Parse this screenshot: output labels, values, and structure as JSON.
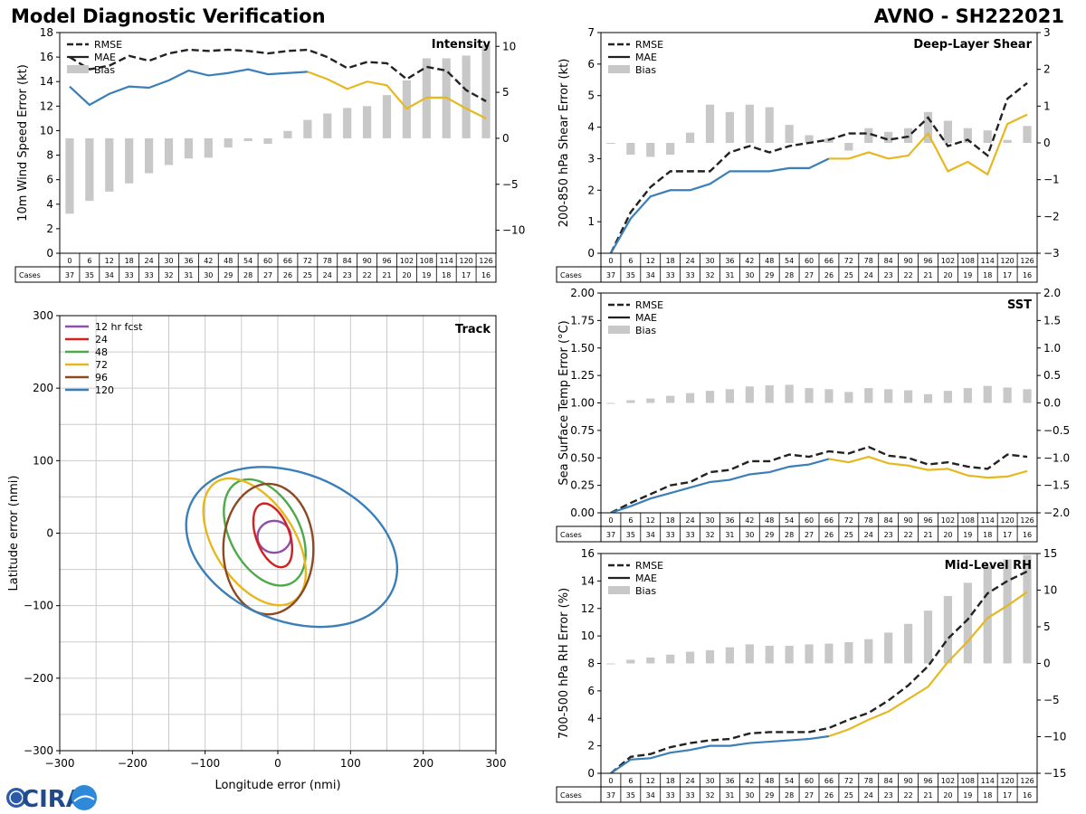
{
  "header": {
    "title_left": "Model Diagnostic Verification",
    "title_right": "AVNO - SH222021"
  },
  "logo": {
    "text": "CIRA",
    "icon": "cira-logo-icon"
  },
  "colors": {
    "rmse": "#222222",
    "mae_early": "#3a7fb9",
    "mae_late": "#e6b820",
    "bias": "#c8c8c8",
    "grid": "#cccccc"
  },
  "legend": {
    "rmse": "RMSE",
    "mae": "MAE",
    "bias": "Bias"
  },
  "cases_label": "Cases",
  "hours": [
    0,
    6,
    12,
    18,
    24,
    30,
    36,
    42,
    48,
    54,
    60,
    66,
    72,
    78,
    84,
    90,
    96,
    102,
    108,
    114,
    120,
    126
  ],
  "cases": [
    37,
    35,
    34,
    33,
    33,
    32,
    31,
    30,
    29,
    28,
    27,
    26,
    25,
    24,
    23,
    22,
    21,
    20,
    19,
    18,
    17,
    16
  ],
  "chart_data": [
    {
      "id": "intensity",
      "type": "line",
      "title": "Intensity",
      "xlabel": "",
      "ylabel": "10m Wind Speed Error (kt)",
      "ylim": [
        0,
        18
      ],
      "yticks": [
        0,
        2,
        4,
        6,
        8,
        10,
        12,
        14,
        16,
        18
      ],
      "y2lim": [
        -12.5,
        11.5
      ],
      "y2ticks": [
        10,
        5,
        0,
        -5,
        -10
      ],
      "y2ticklabels": [
        "10",
        "5",
        "0",
        "−5",
        "−10"
      ],
      "mae_color_switch_hour": 72,
      "series": [
        {
          "name": "RMSE",
          "values": [
            16.0,
            15.0,
            15.3,
            16.1,
            15.7,
            16.3,
            16.6,
            16.5,
            16.6,
            16.5,
            16.3,
            16.5,
            16.6,
            16.0,
            15.1,
            15.6,
            15.5,
            14.2,
            15.2,
            14.9,
            13.3,
            12.4
          ]
        },
        {
          "name": "MAE",
          "values": [
            13.6,
            12.1,
            13.0,
            13.6,
            13.5,
            14.1,
            14.9,
            14.5,
            14.7,
            15.0,
            14.6,
            14.7,
            14.8,
            14.2,
            13.4,
            14.0,
            13.7,
            11.8,
            12.7,
            12.7,
            11.8,
            11.0
          ]
        },
        {
          "name": "Bias",
          "axis": "right",
          "values": [
            -8.2,
            -6.8,
            -5.8,
            -4.9,
            -3.8,
            -2.9,
            -2.2,
            -2.1,
            -1.0,
            -0.3,
            -0.6,
            0.8,
            2.0,
            2.7,
            3.3,
            3.5,
            4.7,
            6.3,
            8.7,
            8.7,
            9.0,
            10.2
          ]
        }
      ]
    },
    {
      "id": "shear",
      "type": "line",
      "title": "Deep-Layer Shear",
      "xlabel": "",
      "ylabel": "200-850 hPa Shear Error (kt)",
      "ylim": [
        0,
        7
      ],
      "yticks": [
        0,
        1,
        2,
        3,
        4,
        5,
        6,
        7
      ],
      "y2lim": [
        -3,
        3
      ],
      "y2ticks": [
        3,
        2,
        1,
        0,
        -1,
        -2,
        -3
      ],
      "y2ticklabels": [
        "3",
        "2",
        "1",
        "0",
        "−1",
        "−2",
        "−3"
      ],
      "mae_color_switch_hour": 66,
      "series": [
        {
          "name": "RMSE",
          "values": [
            0.0,
            1.3,
            2.1,
            2.6,
            2.6,
            2.6,
            3.2,
            3.4,
            3.2,
            3.4,
            3.5,
            3.6,
            3.8,
            3.8,
            3.6,
            3.7,
            4.3,
            3.4,
            3.6,
            3.1,
            4.9,
            5.4
          ]
        },
        {
          "name": "MAE",
          "values": [
            0.0,
            1.1,
            1.8,
            2.0,
            2.0,
            2.2,
            2.6,
            2.6,
            2.6,
            2.7,
            2.7,
            3.0,
            3.0,
            3.2,
            3.0,
            3.1,
            3.8,
            2.6,
            2.9,
            2.5,
            4.1,
            4.4
          ]
        },
        {
          "name": "Bias",
          "axis": "right",
          "values": [
            0.0,
            -0.32,
            -0.38,
            -0.32,
            0.28,
            1.04,
            0.84,
            1.04,
            0.97,
            0.49,
            0.21,
            0.13,
            -0.21,
            0.4,
            0.3,
            0.4,
            0.84,
            0.6,
            0.4,
            0.34,
            0.08,
            0.46
          ]
        }
      ]
    },
    {
      "id": "sst",
      "type": "line",
      "title": "SST",
      "xlabel": "",
      "ylabel": "Sea Surface Temp Error (°C)",
      "ylim": [
        0,
        2
      ],
      "yticks": [
        0,
        0.25,
        0.5,
        0.75,
        1.0,
        1.25,
        1.5,
        1.75,
        2.0
      ],
      "yticklabels": [
        "0.00",
        "0.25",
        "0.50",
        "0.75",
        "1.00",
        "1.25",
        "1.50",
        "1.75",
        "2.00"
      ],
      "y2lim": [
        -2,
        2
      ],
      "y2ticks": [
        2.0,
        1.5,
        1.0,
        0.5,
        0.0,
        -0.5,
        -1.0,
        -1.5,
        -2.0
      ],
      "y2ticklabels": [
        "2.0",
        "1.5",
        "1.0",
        "0.5",
        "0.0",
        "−0.5",
        "−1.0",
        "−1.5",
        "−2.0"
      ],
      "mae_color_switch_hour": 66,
      "series": [
        {
          "name": "RMSE",
          "values": [
            0.0,
            0.09,
            0.17,
            0.25,
            0.28,
            0.37,
            0.39,
            0.47,
            0.47,
            0.53,
            0.51,
            0.56,
            0.54,
            0.6,
            0.52,
            0.5,
            0.44,
            0.46,
            0.42,
            0.4,
            0.53,
            0.51
          ]
        },
        {
          "name": "MAE",
          "values": [
            0.0,
            0.06,
            0.13,
            0.18,
            0.23,
            0.28,
            0.3,
            0.35,
            0.37,
            0.42,
            0.44,
            0.49,
            0.46,
            0.51,
            0.45,
            0.43,
            0.39,
            0.4,
            0.34,
            0.32,
            0.33,
            0.38
          ]
        },
        {
          "name": "Bias",
          "axis": "right",
          "values": [
            0.0,
            0.05,
            0.08,
            0.13,
            0.18,
            0.22,
            0.25,
            0.3,
            0.32,
            0.33,
            0.27,
            0.25,
            0.2,
            0.27,
            0.25,
            0.23,
            0.16,
            0.22,
            0.27,
            0.31,
            0.28,
            0.25
          ]
        }
      ]
    },
    {
      "id": "rh",
      "type": "line",
      "title": "Mid-Level RH",
      "xlabel": "",
      "ylabel": "700-500 hPa RH Error (%)",
      "ylim": [
        0,
        16
      ],
      "yticks": [
        0,
        2,
        4,
        6,
        8,
        10,
        12,
        14,
        16
      ],
      "y2lim": [
        -15,
        15
      ],
      "y2ticks": [
        15,
        10,
        5,
        0,
        -5,
        -10,
        -15
      ],
      "y2ticklabels": [
        "15",
        "10",
        "5",
        "0",
        "−5",
        "−10",
        "−15"
      ],
      "mae_color_switch_hour": 66,
      "series": [
        {
          "name": "RMSE",
          "values": [
            0.0,
            1.2,
            1.4,
            1.9,
            2.2,
            2.4,
            2.5,
            2.9,
            3.0,
            3.0,
            3.0,
            3.3,
            3.9,
            4.4,
            5.3,
            6.4,
            7.8,
            9.8,
            11.2,
            13.1,
            14.0,
            14.7
          ]
        },
        {
          "name": "MAE",
          "values": [
            0.0,
            1.0,
            1.1,
            1.5,
            1.7,
            2.0,
            2.0,
            2.2,
            2.3,
            2.4,
            2.5,
            2.7,
            3.2,
            3.9,
            4.5,
            5.4,
            6.3,
            8.1,
            9.6,
            11.3,
            12.2,
            13.2
          ]
        },
        {
          "name": "Bias",
          "axis": "right",
          "values": [
            0.0,
            0.5,
            0.8,
            1.2,
            1.6,
            1.8,
            2.2,
            2.6,
            2.4,
            2.4,
            2.6,
            2.7,
            2.9,
            3.3,
            4.2,
            5.4,
            7.2,
            9.2,
            11.0,
            13.3,
            14.2,
            14.8
          ]
        }
      ]
    },
    {
      "id": "track",
      "type": "scatter",
      "title": "Track",
      "xlabel": "Longitude error (nmi)",
      "ylabel": "Latitude error (nmi)",
      "xlim": [
        -300,
        300
      ],
      "ylim": [
        -300,
        300
      ],
      "xticks": [
        -300,
        -200,
        -100,
        0,
        100,
        200,
        300
      ],
      "yticks": [
        300,
        200,
        100,
        0,
        -100,
        -200,
        -300
      ],
      "xticklabels": [
        "−300",
        "−200",
        "−100",
        "0",
        "100",
        "200",
        "300"
      ],
      "yticklabels": [
        "300",
        "200",
        "100",
        "0",
        "−100",
        "−200",
        "−300"
      ],
      "ellipses": [
        {
          "label": "12 hr fcst",
          "color": "#8e4fa8",
          "cx": -5,
          "cy": -5,
          "rx": 23,
          "ry": 22,
          "angle": 0
        },
        {
          "label": "24",
          "color": "#d62020",
          "cx": -7,
          "cy": -3,
          "rx": 23,
          "ry": 46,
          "angle": -20
        },
        {
          "label": "48",
          "color": "#4daa4a",
          "cx": -18,
          "cy": 1,
          "rx": 48,
          "ry": 79,
          "angle": -28
        },
        {
          "label": "72",
          "color": "#e6b820",
          "cx": -32,
          "cy": -12,
          "rx": 55,
          "ry": 98,
          "angle": -33
        },
        {
          "label": "96",
          "color": "#8b4a22",
          "cx": -13,
          "cy": -22,
          "rx": 62,
          "ry": 90,
          "angle": 0
        },
        {
          "label": "120",
          "color": "#3a7fb9",
          "cx": 19,
          "cy": -19,
          "rx": 151,
          "ry": 102,
          "angle": 22
        }
      ]
    }
  ]
}
